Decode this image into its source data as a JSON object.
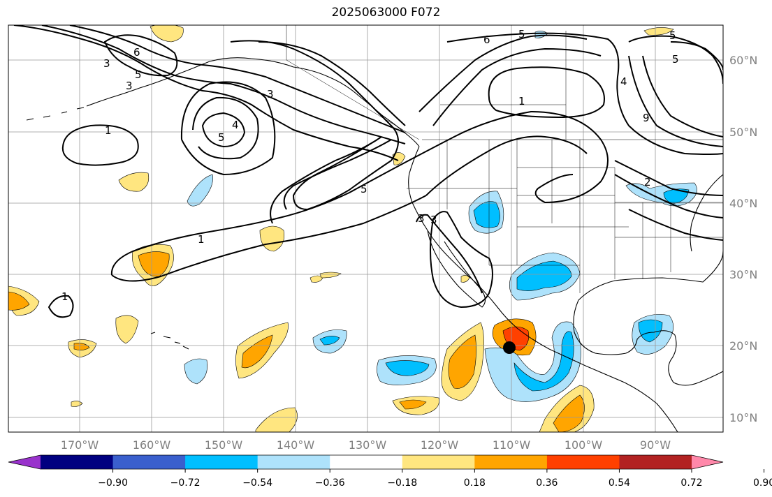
{
  "title": "2025063000 F072",
  "map": {
    "lon_ticks": [
      "170°W",
      "160°W",
      "150°W",
      "140°W",
      "130°W",
      "120°W",
      "110°W",
      "100°W",
      "90°W"
    ],
    "lat_ticks": [
      "60°N",
      "50°N",
      "40°N",
      "30°N",
      "20°N",
      "10°N"
    ],
    "gridlines": true,
    "center_marker": "black-dot"
  },
  "contours": {
    "color": "#000000",
    "labels": [
      "6",
      "5",
      "3",
      "3",
      "5",
      "5",
      "1",
      "1",
      "1",
      "3",
      "5",
      "3",
      "6",
      "5",
      "1",
      "2",
      "9",
      "4",
      "3",
      "5",
      "4"
    ]
  },
  "colorbar": {
    "orientation": "horizontal",
    "extend": "both",
    "tick_labels": [
      "−0.90",
      "−0.72",
      "−0.54",
      "−0.36",
      "−0.18",
      "0.18",
      "0.36",
      "0.54",
      "0.72",
      "0.90"
    ],
    "colors": [
      "#9932cc",
      "#000080",
      "#3a5fcd",
      "#00bfff",
      "#aee2fb",
      "#ffffff",
      "#ffe680",
      "#ffa500",
      "#ff4000",
      "#b22222",
      "#ff88aa"
    ]
  }
}
